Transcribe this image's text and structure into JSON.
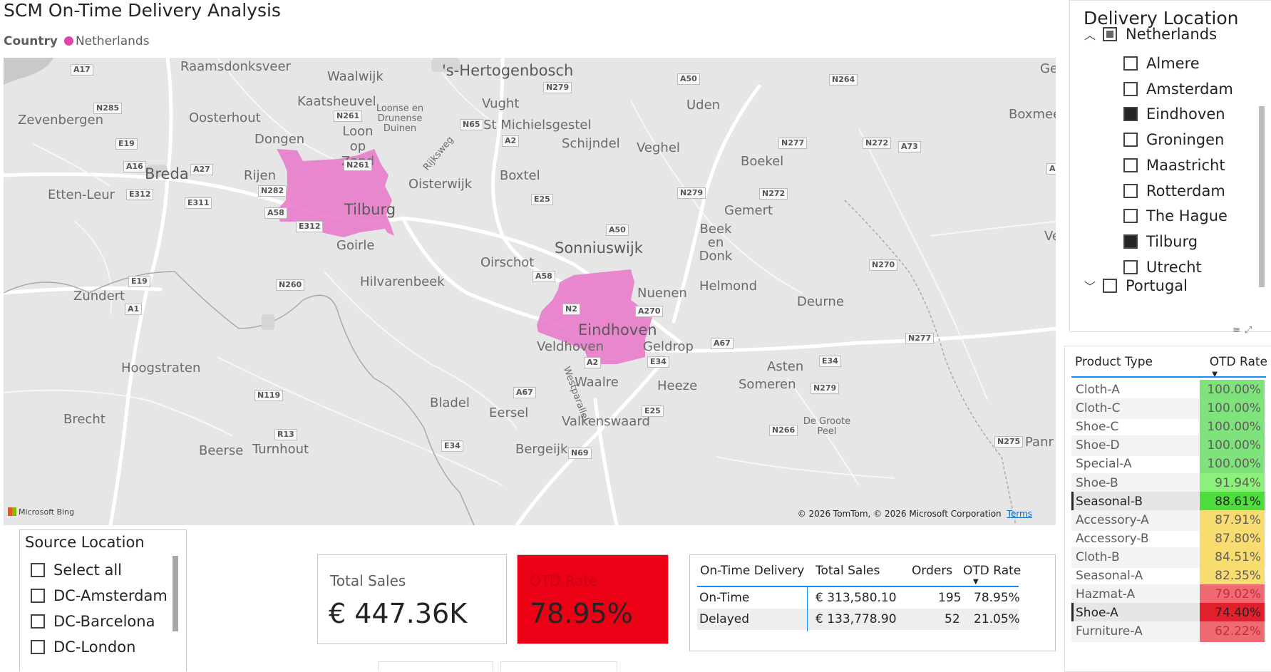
{
  "header": {
    "title": "SCM On-Time Delivery Analysis",
    "legend_label": "Country",
    "legend_value": "Netherlands",
    "legend_color": "#e044a7"
  },
  "map": {
    "region_color": "#e87bcb",
    "cities": [
      {
        "name": "Raamsdonksveer",
        "size": "med"
      },
      {
        "name": "Waalwijk",
        "size": "med"
      },
      {
        "name": "'s-Hertogenbosch",
        "size": "big"
      },
      {
        "name": "Uden",
        "size": "med"
      },
      {
        "name": "Gen",
        "size": "med"
      },
      {
        "name": "Zevenbergen",
        "size": "med"
      },
      {
        "name": "Oosterhout",
        "size": "med"
      },
      {
        "name": "Kaatsheuvel",
        "size": "med"
      },
      {
        "name": "Vught",
        "size": "med"
      },
      {
        "name": "Boxmee",
        "size": "med"
      },
      {
        "name": "Loonse en Drunense Duinen",
        "size": "sm"
      },
      {
        "name": "Loon op Zand",
        "size": "med"
      },
      {
        "name": "St Michielsgestel",
        "size": "med"
      },
      {
        "name": "Dongen",
        "size": "med"
      },
      {
        "name": "Schijndel",
        "size": "med"
      },
      {
        "name": "Veghel",
        "size": "med"
      },
      {
        "name": "Breda",
        "size": "big"
      },
      {
        "name": "Rijen",
        "size": "med"
      },
      {
        "name": "Boekel",
        "size": "med"
      },
      {
        "name": "Etten-Leur",
        "size": "med"
      },
      {
        "name": "Oisterwijk",
        "size": "med"
      },
      {
        "name": "Boxtel",
        "size": "med"
      },
      {
        "name": "Tilburg",
        "size": "big"
      },
      {
        "name": "Gemert",
        "size": "med"
      },
      {
        "name": "Ven",
        "size": "med"
      },
      {
        "name": "Beek en Donk",
        "size": "med"
      },
      {
        "name": "Goirle",
        "size": "med"
      },
      {
        "name": "Sonniuswijk",
        "size": "big"
      },
      {
        "name": "Oirschot",
        "size": "med"
      },
      {
        "name": "Hilvarenbeek",
        "size": "med"
      },
      {
        "name": "Zundert",
        "size": "med"
      },
      {
        "name": "Helmond",
        "size": "med"
      },
      {
        "name": "Nuenen",
        "size": "med"
      },
      {
        "name": "Deurne",
        "size": "med"
      },
      {
        "name": "Eindhoven",
        "size": "big"
      },
      {
        "name": "Veldhoven",
        "size": "med"
      },
      {
        "name": "Geldrop",
        "size": "med"
      },
      {
        "name": "Hoogstraten",
        "size": "med"
      },
      {
        "name": "Asten",
        "size": "med"
      },
      {
        "name": "Waalre",
        "size": "med"
      },
      {
        "name": "Heeze",
        "size": "med"
      },
      {
        "name": "Someren",
        "size": "med"
      },
      {
        "name": "Bladel",
        "size": "med"
      },
      {
        "name": "Eersel",
        "size": "med"
      },
      {
        "name": "Brecht",
        "size": "med"
      },
      {
        "name": "Valkenswaard",
        "size": "med"
      },
      {
        "name": "De Groote Peel",
        "size": "sm"
      },
      {
        "name": "Beerse",
        "size": "med"
      },
      {
        "name": "Turnhout",
        "size": "med"
      },
      {
        "name": "Bergeijk",
        "size": "med"
      },
      {
        "name": "Panr",
        "size": "med"
      },
      {
        "name": "Westparallel",
        "size": "sm"
      },
      {
        "name": "Rijksweg",
        "size": "sm"
      }
    ],
    "roads": [
      "A17",
      "N285",
      "N261",
      "N65",
      "N279",
      "A50",
      "N264",
      "A16",
      "A27",
      "E19",
      "N282",
      "E312",
      "E311",
      "A58",
      "N261",
      "A2",
      "N277",
      "N272",
      "A73",
      "A",
      "E25",
      "N279",
      "N272",
      "A50",
      "A58",
      "N2",
      "A270",
      "E19",
      "A1",
      "N260",
      "A67",
      "E34",
      "N277",
      "E34",
      "N119",
      "A2",
      "A67",
      "E25",
      "N279",
      "N266",
      "N275",
      "R13",
      "E34",
      "N69",
      "N270",
      "E312"
    ],
    "bing_label": "Microsoft Bing",
    "attribution": "© 2026 TomTom, © 2026 Microsoft Corporation",
    "terms": "Terms"
  },
  "delivery_slicer": {
    "title": "Delivery Location",
    "country": "Netherlands",
    "items": [
      {
        "label": "Almere",
        "checked": false
      },
      {
        "label": "Amsterdam",
        "checked": false
      },
      {
        "label": "Eindhoven",
        "checked": true
      },
      {
        "label": "Groningen",
        "checked": false
      },
      {
        "label": "Maastricht",
        "checked": false
      },
      {
        "label": "Rotterdam",
        "checked": false
      },
      {
        "label": "The Hague",
        "checked": false
      },
      {
        "label": "Tilburg",
        "checked": true
      },
      {
        "label": "Utrecht",
        "checked": false
      }
    ],
    "next_country": "Portugal"
  },
  "product_table": {
    "col_name": "Product Type",
    "col_rate": "OTD Rate",
    "rows": [
      {
        "name": "Cloth-A",
        "rate": "100.00%",
        "color": "#7de37a",
        "text": "#605e5c"
      },
      {
        "name": "Cloth-C",
        "rate": "100.00%",
        "color": "#7de37a",
        "text": "#605e5c"
      },
      {
        "name": "Shoe-C",
        "rate": "100.00%",
        "color": "#7de37a",
        "text": "#605e5c"
      },
      {
        "name": "Shoe-D",
        "rate": "100.00%",
        "color": "#7de37a",
        "text": "#605e5c"
      },
      {
        "name": "Special-A",
        "rate": "100.00%",
        "color": "#7de37a",
        "text": "#605e5c"
      },
      {
        "name": "Shoe-B",
        "rate": "91.94%",
        "color": "#8cf17a",
        "text": "#605e5c"
      },
      {
        "name": "Seasonal-B",
        "rate": "88.61%",
        "color": "#4ede3c",
        "text": "#252423",
        "selected": true
      },
      {
        "name": "Accessory-A",
        "rate": "87.91%",
        "color": "#f8dc70",
        "text": "#605e5c"
      },
      {
        "name": "Accessory-B",
        "rate": "87.80%",
        "color": "#f8dc70",
        "text": "#605e5c"
      },
      {
        "name": "Cloth-B",
        "rate": "84.51%",
        "color": "#f8dc70",
        "text": "#605e5c"
      },
      {
        "name": "Seasonal-A",
        "rate": "82.35%",
        "color": "#f8dc70",
        "text": "#605e5c"
      },
      {
        "name": "Hazmat-A",
        "rate": "79.02%",
        "color": "#ef6a72",
        "text": "#c0303a"
      },
      {
        "name": "Shoe-A",
        "rate": "74.40%",
        "color": "#e2202c",
        "text": "#252423",
        "selected": true
      },
      {
        "name": "Furniture-A",
        "rate": "62.22%",
        "color": "#ef6a72",
        "text": "#c0303a"
      }
    ]
  },
  "source_slicer": {
    "title": "Source Location",
    "items": [
      "Select all",
      "DC-Amsterdam",
      "DC-Barcelona",
      "DC-London"
    ]
  },
  "kpi": {
    "sales_label": "Total Sales",
    "sales_value": "€ 447.36K",
    "otd_label": "OTD Rate",
    "otd_value": "78.95%",
    "otd_bg": "#ec0016"
  },
  "otd_table": {
    "headers": [
      "On-Time Delivery",
      "Total Sales",
      "Orders",
      "OTD Rate"
    ],
    "rows": [
      {
        "status": "On-Time",
        "sales": "€ 313,580.10",
        "orders": "195",
        "rate": "78.95%"
      },
      {
        "status": "Delayed",
        "sales": "€ 133,778.90",
        "orders": "52",
        "rate": "21.05%"
      }
    ]
  }
}
